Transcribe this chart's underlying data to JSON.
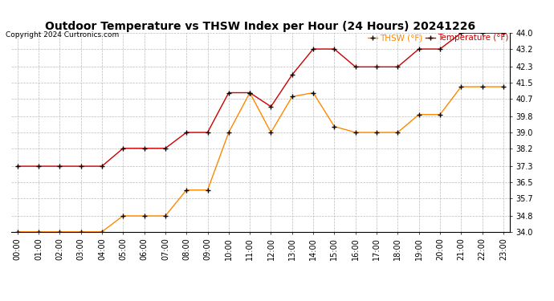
{
  "title": "Outdoor Temperature vs THSW Index per Hour (24 Hours) 20241226",
  "copyright": "Copyright 2024 Curtronics.com",
  "legend_thsw": "THSW (°F)",
  "legend_temp": "Temperature (°F)",
  "hours": [
    "00:00",
    "01:00",
    "02:00",
    "03:00",
    "04:00",
    "05:00",
    "06:00",
    "07:00",
    "08:00",
    "09:00",
    "10:00",
    "11:00",
    "12:00",
    "13:00",
    "14:00",
    "15:00",
    "16:00",
    "17:00",
    "18:00",
    "19:00",
    "20:00",
    "21:00",
    "22:00",
    "23:00"
  ],
  "temperature": [
    37.3,
    37.3,
    37.3,
    37.3,
    37.3,
    38.2,
    38.2,
    38.2,
    39.0,
    39.0,
    41.0,
    41.0,
    40.3,
    41.9,
    43.2,
    43.2,
    42.3,
    42.3,
    42.3,
    43.2,
    43.2,
    44.0,
    44.0,
    44.0
  ],
  "thsw": [
    34.0,
    34.0,
    34.0,
    34.0,
    34.0,
    34.8,
    34.8,
    34.8,
    36.1,
    36.1,
    39.0,
    41.0,
    39.0,
    40.8,
    41.0,
    39.3,
    39.0,
    39.0,
    39.0,
    39.9,
    39.9,
    41.3,
    41.3,
    41.3
  ],
  "ylim_min": 34.0,
  "ylim_max": 44.0,
  "yticks": [
    34.0,
    34.8,
    35.7,
    36.5,
    37.3,
    38.2,
    39.0,
    39.8,
    40.7,
    41.5,
    42.3,
    43.2,
    44.0
  ],
  "temp_color": "#cc0000",
  "thsw_color": "#ff8800",
  "title_fontsize": 10,
  "copyright_fontsize": 6.5,
  "legend_fontsize": 7.5,
  "tick_fontsize": 7,
  "bg_color": "#ffffff",
  "plot_bg_color": "#ffffff",
  "grid_color": "#bbbbbb",
  "marker_color": "#000000"
}
